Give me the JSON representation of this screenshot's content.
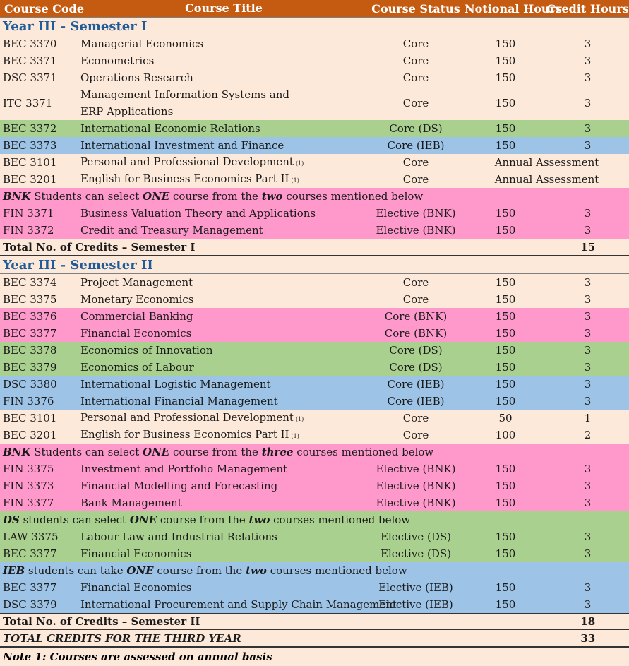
{
  "colors": {
    "header": "#c55a11",
    "core": "#fde9d9",
    "ds": "#a9d08e",
    "ieb": "#9dc3e6",
    "bnk": "#ff99cc",
    "semester_title": "#1f5c99"
  },
  "header": {
    "code": "Course Code",
    "title": "Course Title",
    "status": "Course Status",
    "hours": "Notional Hours",
    "credits": "Credit Hours"
  },
  "sections": [
    {
      "type": "semester",
      "title": "Year III - Semester I",
      "rows": [
        {
          "kind": "course",
          "bg": "core",
          "code": "BEC 3370",
          "title": "Managerial Economics",
          "status": "Core",
          "hours": "150",
          "credits": "3"
        },
        {
          "kind": "course",
          "bg": "core",
          "code": "BEC 3371",
          "title": "Econometrics",
          "status": "Core",
          "hours": "150",
          "credits": "3"
        },
        {
          "kind": "course",
          "bg": "core",
          "code": "DSC 3371",
          "title": "Operations Research",
          "status": "Core",
          "hours": "150",
          "credits": "3"
        },
        {
          "kind": "course",
          "bg": "core",
          "tall": true,
          "code": "ITC 3371",
          "title": "Management Information Systems and",
          "title2": "ERP Applications",
          "status": "Core",
          "hours": "150",
          "credits": "3"
        },
        {
          "kind": "course",
          "bg": "ds",
          "code": "BEC 3372",
          "title": "International Economic Relations",
          "status": "Core (DS)",
          "hours": "150",
          "credits": "3"
        },
        {
          "kind": "course",
          "bg": "ieb",
          "code": "BEC 3373",
          "title": "International Investment and Finance",
          "status": "Core (IEB)",
          "hours": "150",
          "credits": "3"
        },
        {
          "kind": "course",
          "bg": "core",
          "code": "BEC 3101",
          "title": "Personal and Professional Development",
          "sup": "(1)",
          "status": "Core",
          "annual": "Annual Assessment"
        },
        {
          "kind": "course",
          "bg": "core",
          "code": "BEC 3201",
          "title": "English for Business Economics Part II",
          "sup": "(1)",
          "status": "Core",
          "annual": "Annual Assessment"
        },
        {
          "kind": "note",
          "bg": "bnk",
          "a": "BNK",
          "b": " Students can select ",
          "c": "ONE",
          "d": " course from the ",
          "e": "two",
          "f": " courses mentioned below"
        },
        {
          "kind": "course",
          "bg": "bnk",
          "code": "FIN 3371",
          "title": "Business Valuation Theory and Applications",
          "status": "Elective (BNK)",
          "hours": "150",
          "credits": "3"
        },
        {
          "kind": "course",
          "bg": "bnk",
          "code": "FIN 3372",
          "title": "Credit and Treasury Management",
          "status": "Elective (BNK)",
          "hours": "150",
          "credits": "3"
        }
      ],
      "total_label": "Total No. of Credits – Semester I",
      "total_value": "15"
    },
    {
      "type": "semester",
      "title": "Year III - Semester II",
      "rows": [
        {
          "kind": "course",
          "bg": "core",
          "code": "BEC 3374",
          "title": "Project Management",
          "status": "Core",
          "hours": "150",
          "credits": "3"
        },
        {
          "kind": "course",
          "bg": "core",
          "code": "BEC 3375",
          "title": "Monetary Economics",
          "status": "Core",
          "hours": "150",
          "credits": "3"
        },
        {
          "kind": "course",
          "bg": "bnk",
          "code": "BEC 3376",
          "title": "Commercial Banking",
          "status": "Core (BNK)",
          "hours": "150",
          "credits": "3"
        },
        {
          "kind": "course",
          "bg": "bnk",
          "code": "BEC 3377",
          "title": "Financial Economics",
          "status": "Core (BNK)",
          "hours": "150",
          "credits": "3"
        },
        {
          "kind": "course",
          "bg": "ds",
          "code": "BEC 3378",
          "title": "Economics of Innovation",
          "status": "Core (DS)",
          "hours": "150",
          "credits": "3"
        },
        {
          "kind": "course",
          "bg": "ds",
          "code": "BEC 3379",
          "title": "Economics of Labour",
          "status": "Core (DS)",
          "hours": "150",
          "credits": "3"
        },
        {
          "kind": "course",
          "bg": "ieb",
          "code": "DSC 3380",
          "title": "International Logistic Management",
          "status": "Core (IEB)",
          "hours": "150",
          "credits": "3"
        },
        {
          "kind": "course",
          "bg": "ieb",
          "code": "FIN 3376",
          "title": "International Financial Management",
          "status": "Core (IEB)",
          "hours": "150",
          "credits": "3"
        },
        {
          "kind": "course",
          "bg": "core",
          "code": "BEC 3101",
          "title": "Personal and Professional Development",
          "sup": "(1)",
          "status": "Core",
          "hours": "50",
          "credits": "1"
        },
        {
          "kind": "course",
          "bg": "core",
          "code": "BEC 3201",
          "title": "English for Business Economics Part II",
          "sup": "(1)",
          "status": "Core",
          "hours": "100",
          "credits": "2"
        },
        {
          "kind": "note",
          "bg": "bnk",
          "a": "BNK",
          "b": " Students can select ",
          "c": "ONE",
          "d": " course from the ",
          "e": "three",
          "f": " courses mentioned below"
        },
        {
          "kind": "course",
          "bg": "bnk",
          "code": "FIN 3375",
          "title": "Investment and Portfolio Management",
          "status": "Elective (BNK)",
          "hours": "150",
          "credits": "3"
        },
        {
          "kind": "course",
          "bg": "bnk",
          "code": "FIN 3373",
          "title": "Financial Modelling and Forecasting",
          "status": "Elective (BNK)",
          "hours": "150",
          "credits": "3"
        },
        {
          "kind": "course",
          "bg": "bnk",
          "code": "FIN 3377",
          "title": "Bank Management",
          "status": "Elective (BNK)",
          "hours": "150",
          "credits": "3"
        },
        {
          "kind": "note",
          "bg": "ds",
          "a": "DS",
          "b": " students can select ",
          "c": "ONE",
          "d": " course from the ",
          "e": "two",
          "f": " courses mentioned below"
        },
        {
          "kind": "course",
          "bg": "ds",
          "code": "LAW 3375",
          "title": "Labour Law and Industrial Relations",
          "status": "Elective (DS)",
          "hours": "150",
          "credits": "3"
        },
        {
          "kind": "course",
          "bg": "ds",
          "code": "BEC 3377",
          "title": "Financial Economics",
          "status": "Elective (DS)",
          "hours": "150",
          "credits": "3"
        },
        {
          "kind": "note",
          "bg": "ieb",
          "a": "IEB",
          "b": " students can take ",
          "c": "ONE",
          "d": " course from the ",
          "e": "two",
          "f": " courses mentioned below"
        },
        {
          "kind": "course",
          "bg": "ieb",
          "code": "BEC 3377",
          "title": "Financial Economics",
          "status": "Elective (IEB)",
          "hours": "150",
          "credits": "3"
        },
        {
          "kind": "course",
          "bg": "ieb",
          "code": "DSC 3379",
          "title": "International Procurement and Supply Chain Management",
          "status": "Elective (IEB)",
          "hours": "150",
          "credits": "3"
        }
      ],
      "total_label": "Total No. of Credits – Semester II",
      "total_value": "18"
    }
  ],
  "grand_total_label": "TOTAL CREDITS FOR THE THIRD YEAR",
  "grand_total_value": "33",
  "footnote": "Note 1: Courses are assessed on annual basis"
}
